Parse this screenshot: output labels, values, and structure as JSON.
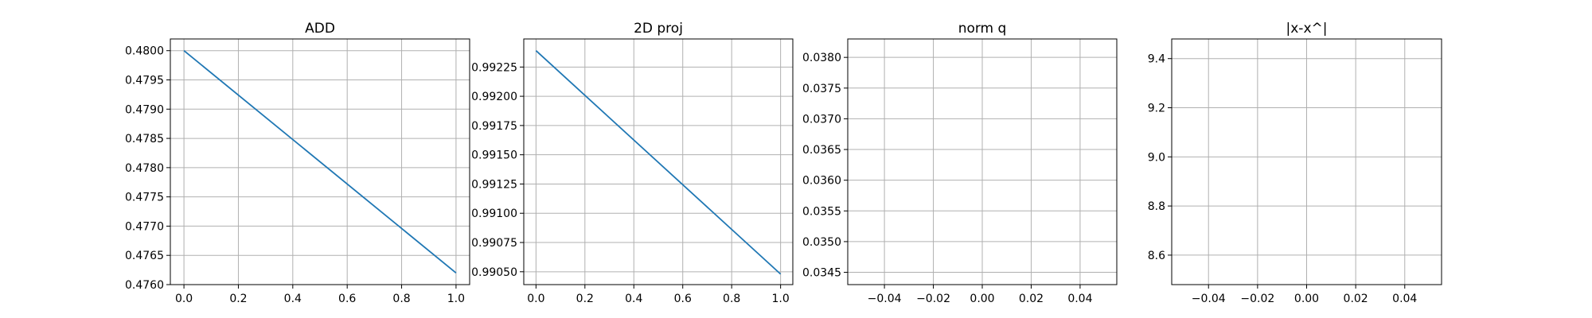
{
  "chart_data": [
    {
      "type": "line",
      "title": "ADD",
      "xlabel": "",
      "ylabel": "",
      "grid": true,
      "xlim": [
        -0.05,
        1.05
      ],
      "ylim": [
        0.476,
        0.4802
      ],
      "xticks": [
        "0.0",
        "0.2",
        "0.4",
        "0.6",
        "0.8",
        "1.0"
      ],
      "yticks": [
        "0.4760",
        "0.4765",
        "0.4770",
        "0.4775",
        "0.4780",
        "0.4785",
        "0.4790",
        "0.4795",
        "0.4800"
      ],
      "series": [
        {
          "x": [
            0.0,
            1.0
          ],
          "y": [
            0.48,
            0.4762
          ],
          "color": "#1f77b4"
        }
      ]
    },
    {
      "type": "line",
      "title": "2D proj",
      "xlabel": "",
      "ylabel": "",
      "grid": true,
      "xlim": [
        -0.05,
        1.05
      ],
      "ylim": [
        0.99039,
        0.99249
      ],
      "xticks": [
        "0.0",
        "0.2",
        "0.4",
        "0.6",
        "0.8",
        "1.0"
      ],
      "yticks": [
        "0.99050",
        "0.99075",
        "0.99100",
        "0.99125",
        "0.99150",
        "0.99175",
        "0.99200",
        "0.99225"
      ],
      "series": [
        {
          "x": [
            0.0,
            1.0
          ],
          "y": [
            0.99239,
            0.99048
          ],
          "color": "#1f77b4"
        }
      ]
    },
    {
      "type": "line",
      "title": "norm q",
      "xlabel": "",
      "ylabel": "",
      "grid": true,
      "xlim": [
        -0.055,
        0.055
      ],
      "ylim": [
        0.0343,
        0.0383
      ],
      "xticks": [
        "−0.04",
        "−0.02",
        "0.00",
        "0.02",
        "0.04"
      ],
      "yticks": [
        "0.0345",
        "0.0350",
        "0.0355",
        "0.0360",
        "0.0365",
        "0.0370",
        "0.0375",
        "0.0380"
      ],
      "series": []
    },
    {
      "type": "line",
      "title": "|x-x^|",
      "xlabel": "",
      "ylabel": "",
      "grid": true,
      "xlim": [
        -0.055,
        0.055
      ],
      "ylim": [
        8.48,
        9.48
      ],
      "xticks": [
        "−0.04",
        "−0.02",
        "0.00",
        "0.02",
        "0.04"
      ],
      "yticks": [
        "8.6",
        "8.8",
        "9.0",
        "9.2",
        "9.4"
      ],
      "series": []
    }
  ]
}
